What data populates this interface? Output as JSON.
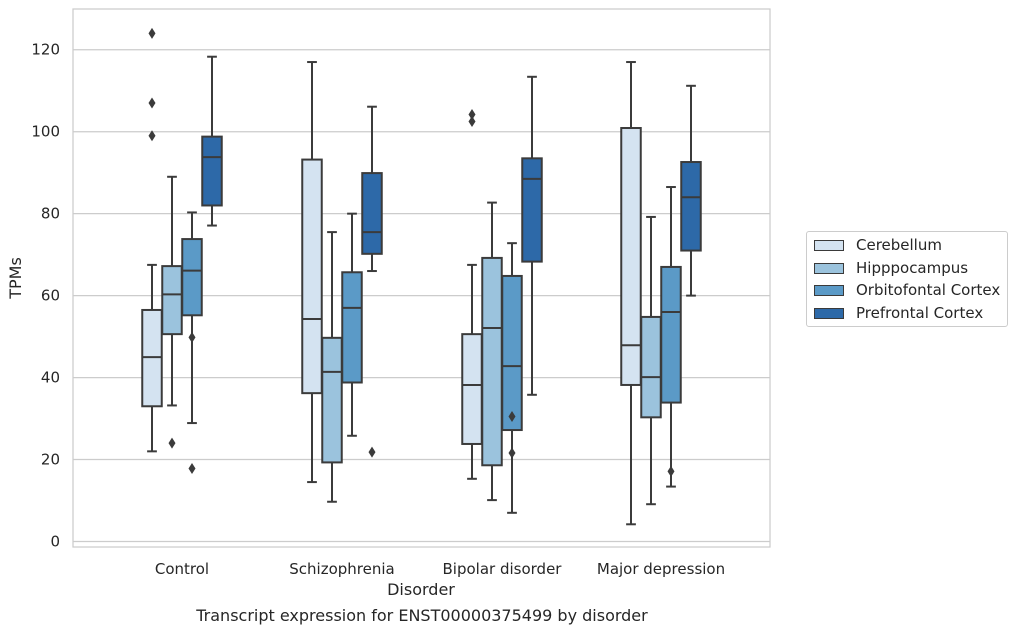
{
  "chart_data": {
    "type": "box",
    "caption": "Transcript expression for ENST00000375499 by disorder",
    "xlabel": "Disorder",
    "ylabel": "TPMs",
    "ylim": [
      -1.5,
      130
    ],
    "yticks": [
      0,
      20,
      40,
      60,
      80,
      100,
      120
    ],
    "grid": true,
    "legend_position": "right",
    "categories": [
      "Control",
      "Schizophrenia",
      "Bipolar disorder",
      "Major depression"
    ],
    "series": [
      {
        "name": "Cerebellum",
        "color": "#d4e3f1",
        "boxes": [
          {
            "whisker_low": 22,
            "q1": 33,
            "median": 45,
            "q3": 56.5,
            "whisker_high": 67.5,
            "outliers": [
              99,
              107,
              124
            ]
          },
          {
            "whisker_low": 14.5,
            "q1": 36.2,
            "median": 54.3,
            "q3": 93.2,
            "whisker_high": 117,
            "outliers": []
          },
          {
            "whisker_low": 15.3,
            "q1": 23.8,
            "median": 38.2,
            "q3": 50.6,
            "whisker_high": 67.5,
            "outliers": [
              102.5,
              104.2
            ]
          },
          {
            "whisker_low": 4.2,
            "q1": 38.2,
            "median": 47.9,
            "q3": 100.9,
            "whisker_high": 117,
            "outliers": []
          }
        ]
      },
      {
        "name": "Hipppocampus",
        "color": "#9bc3dd",
        "boxes": [
          {
            "whisker_low": 33.2,
            "q1": 50.6,
            "median": 60.3,
            "q3": 67.2,
            "whisker_high": 89,
            "outliers": [
              24
            ]
          },
          {
            "whisker_low": 9.7,
            "q1": 19.3,
            "median": 41.4,
            "q3": 49.7,
            "whisker_high": 75.5,
            "outliers": []
          },
          {
            "whisker_low": 10.1,
            "q1": 18.6,
            "median": 52.1,
            "q3": 69.2,
            "whisker_high": 82.7,
            "outliers": []
          },
          {
            "whisker_low": 9.1,
            "q1": 30.3,
            "median": 40.1,
            "q3": 54.8,
            "whisker_high": 79.2,
            "outliers": []
          }
        ]
      },
      {
        "name": "Orbitofontal Cortex",
        "color": "#5b9ac7",
        "boxes": [
          {
            "whisker_low": 28.9,
            "q1": 55.2,
            "median": 66.1,
            "q3": 73.8,
            "whisker_high": 80.3,
            "outliers": [
              17.8,
              49.8
            ]
          },
          {
            "whisker_low": 25.8,
            "q1": 38.8,
            "median": 57,
            "q3": 65.7,
            "whisker_high": 80,
            "outliers": []
          },
          {
            "whisker_low": 7,
            "q1": 27.2,
            "median": 42.8,
            "q3": 64.8,
            "whisker_high": 72.8,
            "outliers": [
              21.6,
              30.5
            ]
          },
          {
            "whisker_low": 13.4,
            "q1": 33.9,
            "median": 56,
            "q3": 67,
            "whisker_high": 86.5,
            "outliers": [
              17.1
            ]
          }
        ]
      },
      {
        "name": "Prefrontal Cortex",
        "color": "#2d69a8",
        "boxes": [
          {
            "whisker_low": 77.1,
            "q1": 82,
            "median": 93.8,
            "q3": 98.8,
            "whisker_high": 118.3,
            "outliers": []
          },
          {
            "whisker_low": 66,
            "q1": 70.2,
            "median": 75.5,
            "q3": 89.9,
            "whisker_high": 106.1,
            "outliers": [
              21.8
            ]
          },
          {
            "whisker_low": 35.8,
            "q1": 68.3,
            "median": 88.5,
            "q3": 93.5,
            "whisker_high": 113.4,
            "outliers": []
          },
          {
            "whisker_low": 60,
            "q1": 71,
            "median": 84,
            "q3": 92.6,
            "whisker_high": 111.2,
            "outliers": []
          }
        ]
      }
    ]
  }
}
